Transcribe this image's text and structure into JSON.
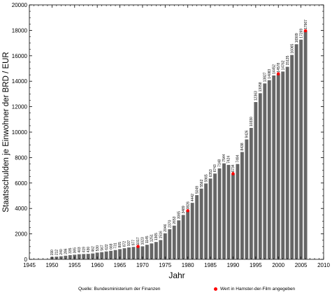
{
  "chart_data": {
    "type": "bar",
    "xlabel": "Jahr",
    "ylabel": "Staatsschulden je Einwohner der BRD / EUR",
    "xlim": [
      1945,
      2010
    ],
    "ylim": [
      0,
      20000
    ],
    "x_ticks": [
      1945,
      1950,
      1955,
      1960,
      1965,
      1970,
      1975,
      1980,
      1985,
      1990,
      1995,
      2000,
      2005,
      2010
    ],
    "y_ticks": [
      0,
      2000,
      4000,
      6000,
      8000,
      10000,
      12000,
      14000,
      16000,
      18000,
      20000
    ],
    "grid": false,
    "bar_color": "#666666",
    "marker_color": "#ff0000",
    "years": [
      1950,
      1951,
      1952,
      1953,
      1954,
      1955,
      1956,
      1957,
      1958,
      1959,
      1960,
      1961,
      1962,
      1963,
      1964,
      1965,
      1966,
      1967,
      1968,
      1969,
      1970,
      1971,
      1972,
      1973,
      1974,
      1975,
      1976,
      1977,
      1978,
      1979,
      1980,
      1981,
      1982,
      1983,
      1984,
      1985,
      1986,
      1987,
      1988,
      1989,
      1990,
      1991,
      1992,
      1993,
      1994,
      1995,
      1996,
      1997,
      1998,
      1999,
      2000,
      2001,
      2002,
      2003,
      2004,
      2005,
      2006
    ],
    "values": [
      190,
      212,
      240,
      286,
      335,
      365,
      403,
      419,
      430,
      462,
      530,
      567,
      622,
      668,
      731,
      805,
      872,
      937,
      977,
      1017,
      1023,
      1145,
      1251,
      1365,
      1516,
      2046,
      2370,
      2653,
      3065,
      3489,
      3826,
      4442,
      5049,
      5562,
      5965,
      6353,
      6743,
      7148,
      7544,
      7424,
      6734,
      7494,
      8438,
      9426,
      10330,
      12363,
      13058,
      13827,
      14083,
      14452,
      14578,
      14762,
      15135,
      16065,
      16909,
      17269,
      17967
    ],
    "value_labels": [
      "190",
      "212",
      "240",
      "286",
      "335",
      "365",
      "403",
      "419",
      "430",
      "462",
      "530",
      "567",
      "622",
      "668",
      "731",
      "805",
      "872",
      "937",
      "977",
      "1017",
      "1023",
      "1145",
      "1251",
      "1365",
      "1516",
      "2046",
      "2370",
      "2653",
      "3065",
      "3489",
      "3826",
      "4442",
      "5049",
      "5562",
      "5965",
      "6353",
      "6743",
      "7148",
      "7544",
      "7424",
      "6734",
      "7494",
      "8438",
      "9426",
      "10330",
      "12363",
      "13058",
      "13827",
      "14083",
      "14452",
      "14578",
      "14762",
      "15135",
      "16065",
      "16909",
      "17269",
      "17967"
    ],
    "highlighted_years": [
      1969,
      1980,
      1990,
      2000,
      2006
    ],
    "source_note": "Quelle: Bundesministerium der Finanzen",
    "legend_label": "Wert in Hamster-der-Film angegeben"
  }
}
